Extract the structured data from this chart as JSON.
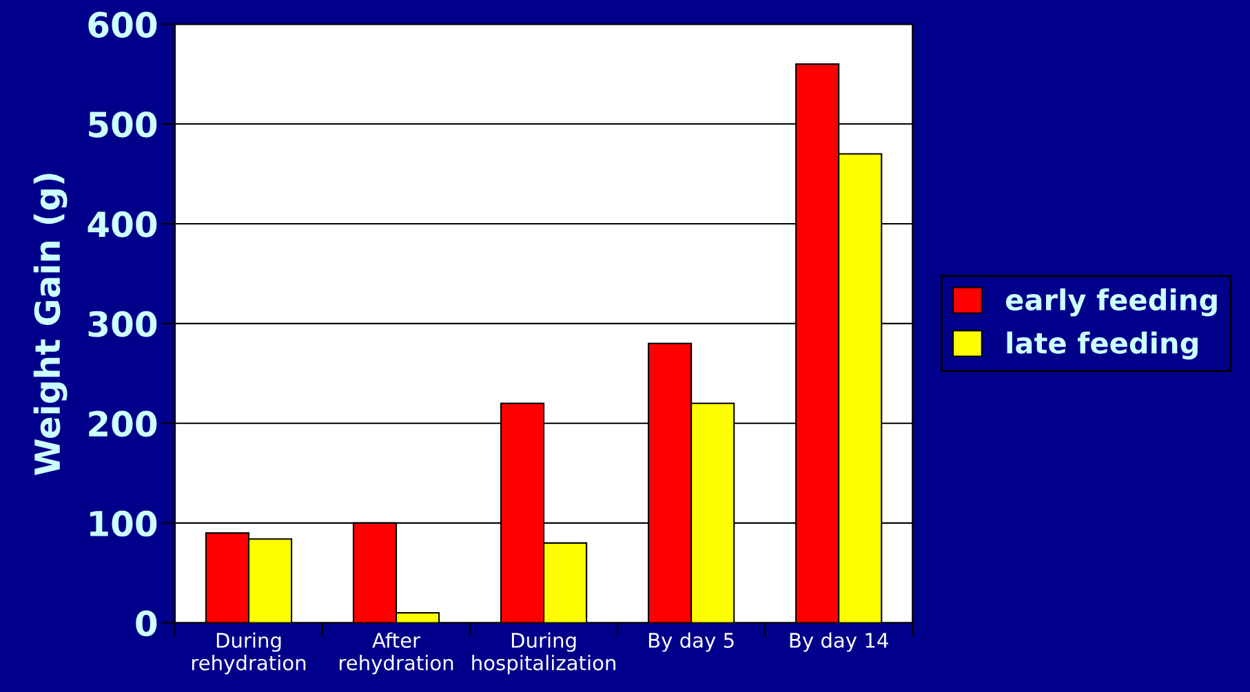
{
  "chart_data": {
    "type": "bar",
    "ylabel": "Weight Gain (g)",
    "categories": [
      "During\nrehydration",
      "After\nrehydration",
      "During\nhospitalization",
      "By day 5",
      "By day 14"
    ],
    "series": [
      {
        "name": "early feeding",
        "color": "#ff0000",
        "values": [
          90,
          100,
          220,
          280,
          560
        ]
      },
      {
        "name": "late feeding",
        "color": "#ffff00",
        "values": [
          84,
          10,
          80,
          220,
          470
        ]
      }
    ],
    "ylim": [
      0,
      600
    ],
    "yticks": [
      0,
      100,
      200,
      300,
      400,
      500,
      600
    ],
    "grid": "y",
    "legend": "right"
  }
}
